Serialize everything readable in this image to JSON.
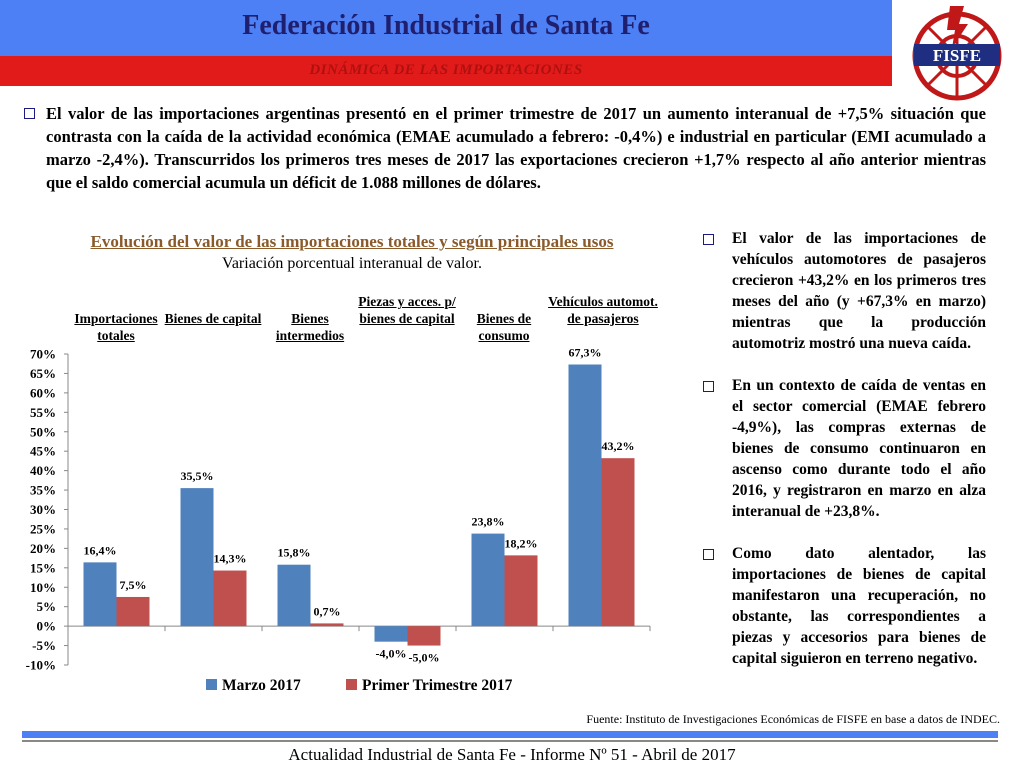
{
  "header": {
    "title": "Federación Industrial de Santa Fe",
    "subtitle": "DINÁMICA DE LAS IMPORTACIONES",
    "logo_text": "FISFE"
  },
  "intro": "El valor de las importaciones argentinas presentó en el primer trimestre de 2017 un aumento interanual de +7,5% situación que contrasta con la caída de la actividad económica (EMAE acumulado a febrero: -0,4%) e industrial en particular (EMI acumulado a marzo -2,4%). Transcurridos los primeros tres meses de 2017 las exportaciones crecieron +1,7% respecto al año anterior mientras que el saldo comercial acumula un déficit de 1.088 millones de dólares.",
  "chart_data": {
    "type": "bar",
    "title": "Evolución del valor de las importaciones totales y según principales usos",
    "subtitle": "Variación porcentual interanual de valor.",
    "categories": [
      "Importaciones totales",
      "Bienes de capital",
      "Bienes intermedios",
      "Piezas y acces. p/ bienes de capital",
      "Bienes de consumo",
      "Vehículos automot. de pasajeros"
    ],
    "series": [
      {
        "name": "Marzo 2017",
        "values": [
          16.4,
          35.5,
          15.8,
          -4.0,
          23.8,
          67.3
        ],
        "labels": [
          "16,4%",
          "35,5%",
          "15,8%",
          "-4,0%",
          "23,8%",
          "67,3%"
        ],
        "color": "#4f81bd"
      },
      {
        "name": "Primer Trimestre 2017",
        "values": [
          7.5,
          14.3,
          0.7,
          -5.0,
          18.2,
          43.2
        ],
        "labels": [
          "7,5%",
          "14,3%",
          "0,7%",
          "-5,0%",
          "18,2%",
          "43,2%"
        ],
        "color": "#c0504d"
      }
    ],
    "ylim": [
      -10,
      70
    ],
    "yticks": [
      "-10%",
      "-5%",
      "0%",
      "5%",
      "10%",
      "15%",
      "20%",
      "25%",
      "30%",
      "35%",
      "40%",
      "45%",
      "50%",
      "55%",
      "60%",
      "65%",
      "70%"
    ],
    "legend_position": "bottom",
    "grid": false
  },
  "side_bullets": [
    "El valor de las importaciones de vehículos automotores de pasajeros crecieron +43,2% en los primeros tres meses del año (y +67,3% en marzo) mientras que la producción automotriz mostró una nueva caída.",
    "En un contexto de caída de ventas en el sector comercial (EMAE febrero -4,9%), las compras externas de bienes de consumo continuaron en ascenso como durante todo el año 2016, y registraron en marzo en alza interanual de +23,8%.",
    "Como dato alentador, las importaciones de bienes de capital manifestaron una recuperación, no obstante, las correspondientes a piezas y accesorios para bienes de capital siguieron en terreno negativo."
  ],
  "source": "Fuente: Instituto de Investigaciones Económicas de  FISFE en base a datos de INDEC.",
  "footer": "Actualidad Industrial de Santa Fe - Informe Nº 51 - Abril de 2017"
}
